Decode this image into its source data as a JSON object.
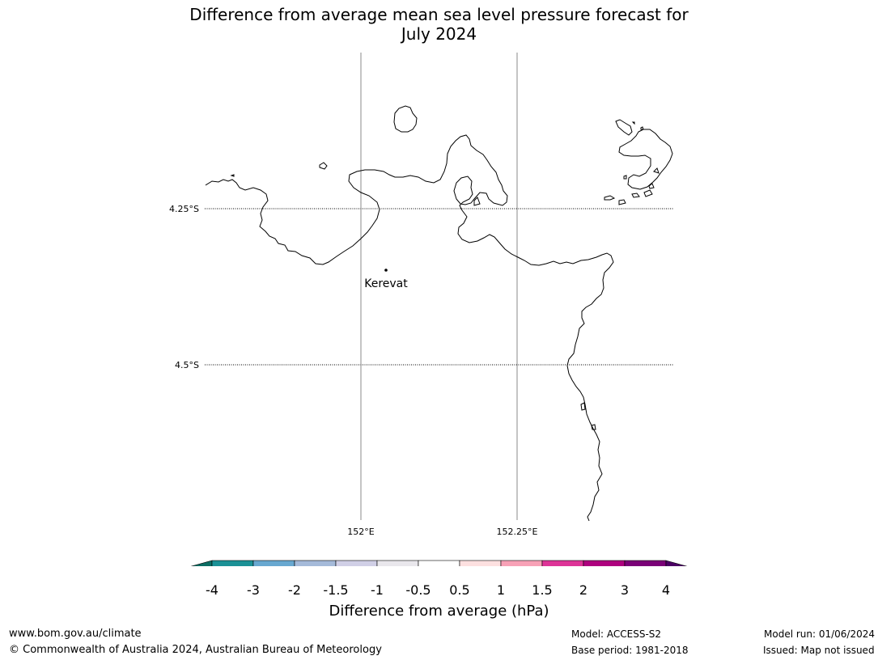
{
  "title": {
    "line1": "Difference from average mean sea level pressure forecast for",
    "line2": "July 2024"
  },
  "map": {
    "lat_labels": [
      "4.25°S",
      "4.5°S"
    ],
    "lon_labels": [
      "152°E",
      "152.25°E"
    ],
    "place_name": "Kerevat"
  },
  "colorbar": {
    "title": "Difference from average (hPa)",
    "ticks": [
      "-4",
      "-3",
      "-2",
      "-1.5",
      "-1",
      "-0.5",
      "0.5",
      "1",
      "1.5",
      "2",
      "3",
      "4"
    ],
    "low_extend_color": "#0c6d63",
    "high_extend_color": "#4b0064",
    "colors": [
      "#1b9196",
      "#68a8d0",
      "#a5bad9",
      "#d0cfe6",
      "#e9e7ec",
      "#ffffff",
      "#fde0e0",
      "#f7a1b6",
      "#dd3497",
      "#ae017e",
      "#7a0177"
    ]
  },
  "footer": {
    "url": "www.bom.gov.au/climate",
    "copyright": "© Commonwealth of Australia 2024, Australian Bureau of Meteorology",
    "model": "Model: ACCESS-S2",
    "base_period": "Base period: 1981-2018",
    "model_run": "Model run: 01/06/2024",
    "issued": "Issued: Map not issued"
  }
}
